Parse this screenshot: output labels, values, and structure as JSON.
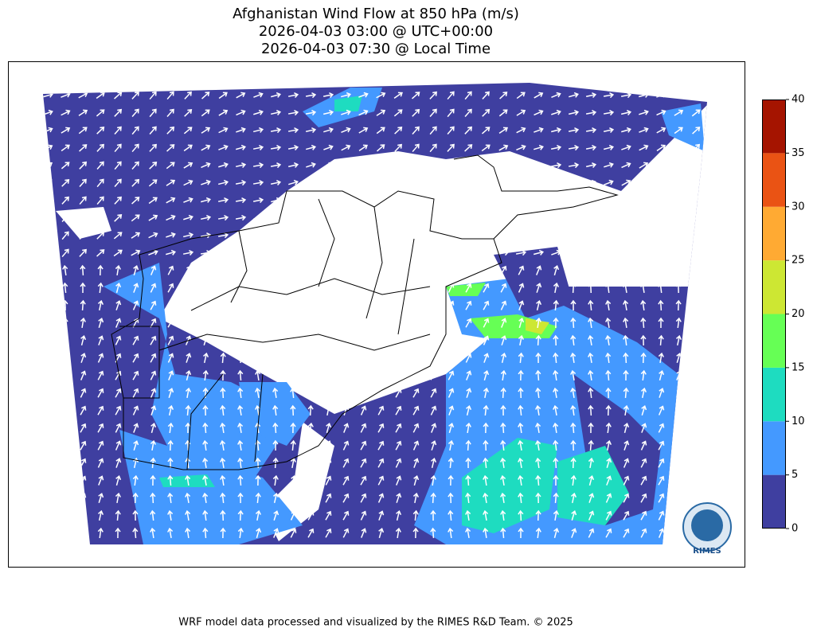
{
  "title": [
    "Afghanistan Wind Flow at 850 hPa (m/s)",
    "2026-04-03 03:00 @ UTC+00:00",
    "2026-04-03 07:30 @ Local Time"
  ],
  "colorbar": {
    "ticks": [
      0,
      5,
      10,
      15,
      20,
      25,
      30,
      35,
      40
    ],
    "colors": [
      "#3f3fa0",
      "#4499ff",
      "#1edcc0",
      "#66ff55",
      "#cde733",
      "#ffaa33",
      "#ea5314",
      "#a51400"
    ]
  },
  "logo": "RIMES",
  "footer": "WRF model data processed and visualized by the RIMES R&D Team. © 2025"
}
